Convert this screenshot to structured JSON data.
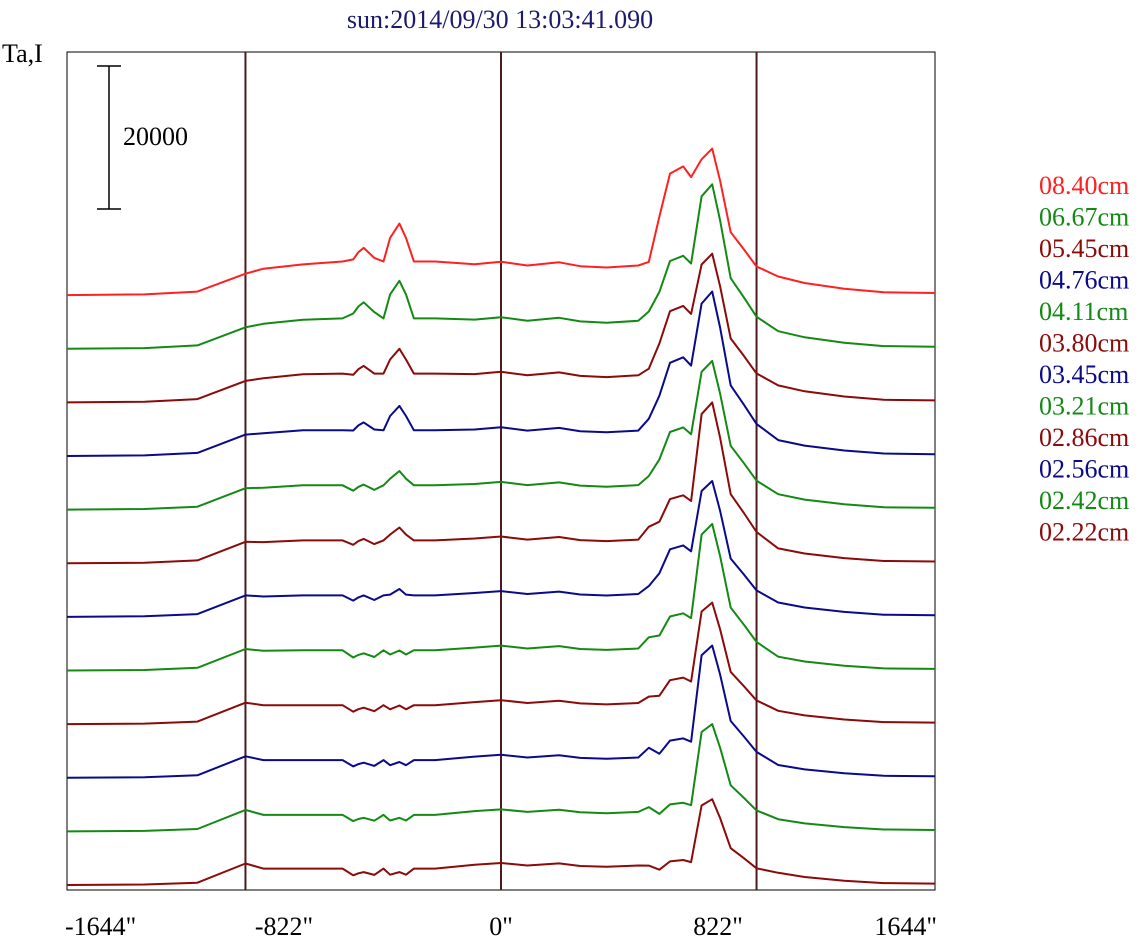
{
  "chart_data": {
    "type": "line",
    "title": "sun:2014/09/30 13:03:41.090",
    "ylabel": "Ta,I",
    "scale_bar_label": "20000",
    "scale_bar_value": 20000,
    "xlim": [
      -1644,
      1644
    ],
    "x_ticks": [
      {
        "value": -1644,
        "label": "-1644\""
      },
      {
        "value": -822,
        "label": "-822\""
      },
      {
        "value": 0,
        "label": "0\""
      },
      {
        "value": 822,
        "label": "822\""
      },
      {
        "value": 1644,
        "label": "1644\""
      }
    ],
    "vertical_markers": [
      -968,
      0,
      968
    ],
    "grid": false,
    "legend_position": "right",
    "offset_between_traces": 7500,
    "profile_points": [
      [
        -1644,
        0
      ],
      [
        -1350,
        100
      ],
      [
        -1150,
        500
      ],
      [
        -968,
        3000
      ],
      [
        -900,
        3700
      ],
      [
        -750,
        4300
      ],
      [
        -600,
        4800
      ],
      [
        -560,
        5000
      ],
      [
        -540,
        6000
      ],
      [
        -520,
        6600
      ],
      [
        -480,
        5200
      ],
      [
        -445,
        5600
      ],
      [
        -420,
        8000
      ],
      [
        -385,
        10000
      ],
      [
        -360,
        8000
      ],
      [
        -330,
        5400
      ],
      [
        -250,
        4900
      ],
      [
        -100,
        4800
      ],
      [
        0,
        5200
      ],
      [
        100,
        4600
      ],
      [
        220,
        5100
      ],
      [
        300,
        4500
      ],
      [
        400,
        4300
      ],
      [
        520,
        4600
      ],
      [
        560,
        5800
      ],
      [
        600,
        11000
      ],
      [
        640,
        17000
      ],
      [
        690,
        18000
      ],
      [
        720,
        16500
      ],
      [
        760,
        19000
      ],
      [
        800,
        20500
      ],
      [
        830,
        16000
      ],
      [
        870,
        11000
      ],
      [
        920,
        8000
      ],
      [
        968,
        5000
      ],
      [
        1050,
        2600
      ],
      [
        1150,
        1700
      ],
      [
        1300,
        900
      ],
      [
        1450,
        400
      ],
      [
        1644,
        300
      ]
    ],
    "series": [
      {
        "name": "08.40cm",
        "color": "#ff2020",
        "left_peak": 10000,
        "left_shoulder": 6600,
        "right_peak": 20500,
        "right_shoulder": 18000,
        "base": 3500
      },
      {
        "name": "06.67cm",
        "color": "#138a13",
        "left_peak": 9500,
        "left_shoulder": 6500,
        "right_peak": 23000,
        "right_shoulder": 13000,
        "base": 3300
      },
      {
        "name": "05.45cm",
        "color": "#8b0a0a",
        "left_peak": 7500,
        "left_shoulder": 5100,
        "right_peak": 20800,
        "right_shoulder": 13500,
        "base": 3200
      },
      {
        "name": "04.76cm",
        "color": "#0a0a8b",
        "left_peak": 7000,
        "left_shoulder": 4700,
        "right_peak": 23000,
        "right_shoulder": 13800,
        "base": 3000
      },
      {
        "name": "04.11cm",
        "color": "#138a13",
        "left_peak": 5400,
        "left_shoulder": 3500,
        "right_peak": 20800,
        "right_shoulder": 11500,
        "base": 2900
      },
      {
        "name": "03.80cm",
        "color": "#8b0a0a",
        "left_peak": 5000,
        "left_shoulder": 3400,
        "right_peak": 22500,
        "right_shoulder": 9500,
        "base": 2800
      },
      {
        "name": "03.45cm",
        "color": "#0a0a8b",
        "left_peak": 3900,
        "left_shoulder": 3000,
        "right_peak": 19000,
        "right_shoulder": 10000,
        "base": 2700
      },
      {
        "name": "03.21cm",
        "color": "#138a13",
        "left_peak": 2800,
        "left_shoulder": 2400,
        "right_peak": 20500,
        "right_shoulder": 8000,
        "base": 2600
      },
      {
        "name": "02.86cm",
        "color": "#8b0a0a",
        "left_peak": 2600,
        "left_shoulder": 2300,
        "right_peak": 17000,
        "right_shoulder": 6500,
        "base": 2500
      },
      {
        "name": "02.56cm",
        "color": "#0a0a8b",
        "left_peak": 2200,
        "left_shoulder": 2100,
        "right_peak": 18500,
        "right_shoulder": 5500,
        "base": 2400
      },
      {
        "name": "02.42cm",
        "color": "#138a13",
        "left_peak": 1900,
        "left_shoulder": 1900,
        "right_peak": 15000,
        "right_shoulder": 4000,
        "base": 2300
      },
      {
        "name": "02.22cm",
        "color": "#8b0a0a",
        "left_peak": 1800,
        "left_shoulder": 1800,
        "right_peak": 12000,
        "right_shoulder": 3500,
        "base": 2300
      }
    ],
    "colors": {
      "title": "#1a1a6e",
      "markers": "#4a1c1c",
      "frame": "#000000"
    }
  }
}
